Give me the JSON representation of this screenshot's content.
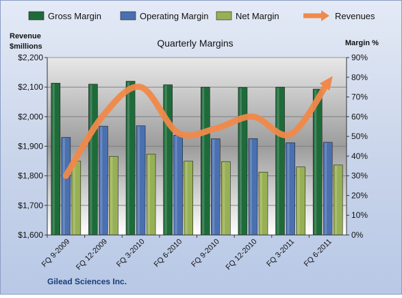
{
  "chart_data": {
    "type": "bar",
    "title": "Quarterly Margins",
    "subtitle": "",
    "source_label": "Gilead Sciences Inc.",
    "left_axis_label": [
      "Revenue",
      "$millions"
    ],
    "right_axis_label": "Margin %",
    "categories": [
      "FQ 9-2009",
      "FQ 12-2009",
      "FQ 3-2010",
      "FQ 6-2010",
      "FQ 9-2010",
      "FQ 12-2010",
      "FQ 3-2011",
      "FQ 6-2011"
    ],
    "left_axis": {
      "min": 1600,
      "max": 2200,
      "ticks": [
        1600,
        1700,
        1800,
        1900,
        2000,
        2100,
        2200
      ],
      "tick_labels": [
        "$1,600",
        "$1,700",
        "$1,800",
        "$1,900",
        "$2,000",
        "$2,100",
        "$2,200"
      ]
    },
    "right_axis": {
      "min": 0,
      "max": 90,
      "ticks": [
        0,
        10,
        20,
        30,
        40,
        50,
        60,
        70,
        80,
        90
      ],
      "tick_labels": [
        "0%",
        "10%",
        "20%",
        "30%",
        "40%",
        "50%",
        "60%",
        "70%",
        "80%",
        "90%"
      ]
    },
    "bar_series": [
      {
        "name": "Gross Margin",
        "axis": "right",
        "color": "#1E6B3A",
        "values": [
          77.0,
          76.5,
          78.0,
          76.2,
          75.0,
          74.8,
          75.0,
          74.0
        ]
      },
      {
        "name": "Operating Margin",
        "axis": "right",
        "color": "#4A70B0",
        "values": [
          49.5,
          55.2,
          55.4,
          50.6,
          48.8,
          48.9,
          46.8,
          47.0
        ]
      },
      {
        "name": "Net Margin",
        "axis": "right",
        "color": "#97B054",
        "values": [
          37.5,
          39.9,
          41.0,
          37.5,
          37.2,
          31.9,
          34.5,
          35.5
        ]
      }
    ],
    "line_series": [
      {
        "name": "Revenues",
        "axis": "left",
        "color": "#F0894A",
        "values": [
          1800,
          2005,
          2100,
          1945,
          1960,
          2000,
          1940,
          2115
        ]
      }
    ],
    "legend": {
      "placement": "top",
      "items": [
        "Gross Margin",
        "Operating Margin",
        "Net Margin",
        "Revenues"
      ]
    },
    "grid": true
  }
}
